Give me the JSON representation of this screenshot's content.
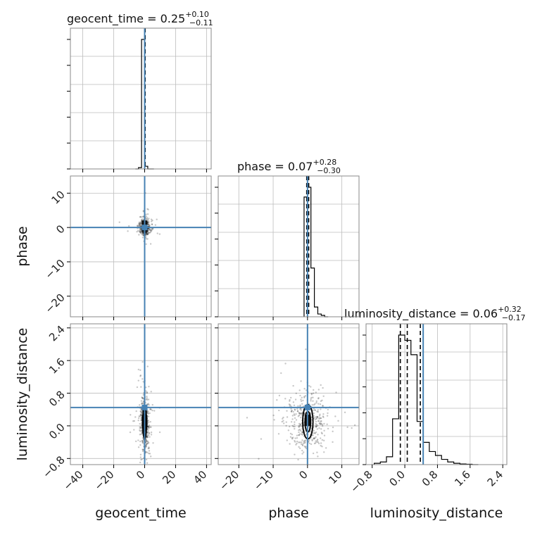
{
  "chart_data": {
    "type": "corner",
    "parameters": [
      "geocent_time",
      "phase",
      "luminosity_distance"
    ],
    "axis_labels": [
      "geocent_time",
      "phase",
      "luminosity_distance"
    ],
    "titles": [
      {
        "text": "geocent_time = 0.25",
        "sup": "+0.10",
        "sub": "−0.11"
      },
      {
        "text": "phase = 0.07",
        "sup": "+0.28",
        "sub": "−0.30"
      },
      {
        "text": "luminosity_distance = 0.06",
        "sup": "+0.32",
        "sub": "−0.17"
      }
    ],
    "ranges": {
      "geocent_time": [
        -48,
        43
      ],
      "phase": [
        -26,
        15
      ],
      "luminosity_distance": [
        -0.95,
        2.5
      ]
    },
    "ticks": {
      "geocent_time": [
        -40,
        -20,
        0,
        20,
        40
      ],
      "phase": [
        -20,
        -10,
        0,
        10
      ],
      "luminosity_distance": [
        -0.8,
        0.0,
        0.8,
        1.6,
        2.4
      ]
    },
    "tick_labels": {
      "geocent_time": [
        "−40",
        "−20",
        "0",
        "20",
        "40"
      ],
      "phase": [
        "−20",
        "−10",
        "0",
        "10"
      ],
      "phase_y": [
        "−20",
        "−10",
        "0",
        "10"
      ],
      "luminosity_distance": [
        "−0.8",
        "0.0",
        "0.8",
        "1.6",
        "2.4"
      ]
    },
    "truths": {
      "geocent_time": 0.0,
      "phase": 0.0,
      "luminosity_distance": 0.45
    },
    "quantiles": {
      "geocent_time": [
        0.14,
        0.25,
        0.35
      ],
      "phase": [
        -0.23,
        0.07,
        0.35
      ],
      "luminosity_distance": [
        -0.11,
        0.06,
        0.38
      ]
    },
    "marginals": {
      "geocent_time": {
        "edges": [
          -6,
          -4,
          -2,
          0,
          2,
          4,
          6
        ],
        "values": [
          0.0,
          0.01,
          0.97,
          0.02,
          0.0,
          0.0
        ]
      },
      "phase": {
        "edges": [
          -1,
          0,
          1,
          2,
          3,
          4,
          5,
          6
        ],
        "values": [
          0.86,
          0.93,
          0.35,
          0.07,
          0.02,
          0.01,
          0.0
        ]
      },
      "luminosity_distance": {
        "edges": [
          -0.75,
          -0.6,
          -0.45,
          -0.3,
          -0.15,
          0.0,
          0.15,
          0.3,
          0.45,
          0.6,
          0.75,
          0.9,
          1.05,
          1.2,
          1.35,
          1.5,
          1.65,
          1.8
        ],
        "values": [
          0.01,
          0.02,
          0.06,
          0.35,
          0.99,
          0.95,
          0.84,
          0.33,
          0.17,
          0.1,
          0.07,
          0.04,
          0.02,
          0.01,
          0.005,
          0.003,
          0.0
        ]
      }
    },
    "joint_contours": {
      "geocent_time__luminosity_distance": {
        "center": [
          0,
          0.08
        ],
        "half_width": [
          1.2,
          0.4
        ]
      },
      "phase__luminosity_distance": {
        "center": [
          0.1,
          0.1
        ],
        "half_width": [
          1.5,
          0.42
        ]
      }
    },
    "grid": true,
    "truth_color": "#4682b4"
  }
}
